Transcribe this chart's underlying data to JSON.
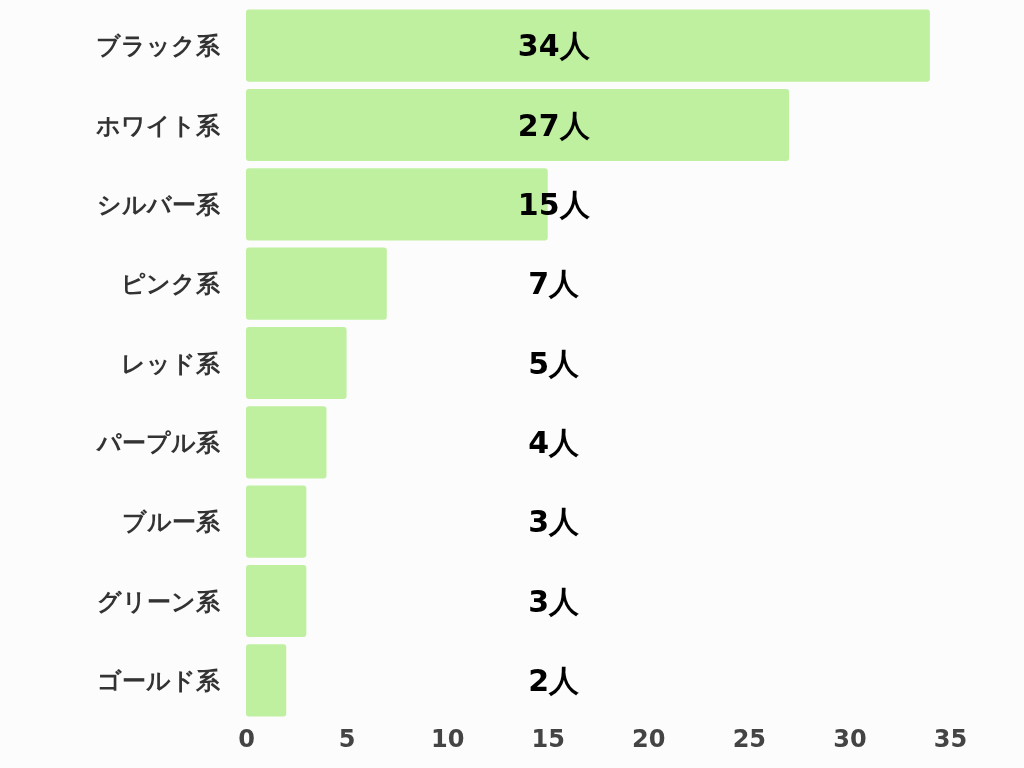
{
  "chart_data": {
    "type": "bar",
    "orientation": "horizontal",
    "categories": [
      "ブラック系",
      "ホワイト系",
      "シルバー系",
      "ピンク系",
      "レッド系",
      "パープル系",
      "ブルー系",
      "グリーン系",
      "ゴールド系"
    ],
    "values": [
      34,
      27,
      15,
      7,
      5,
      4,
      3,
      3,
      2
    ],
    "value_labels": [
      "34人",
      "27人",
      "15人",
      "7人",
      "5人",
      "4人",
      "3人",
      "3人",
      "2人"
    ],
    "color": "#bff0a0",
    "xlim": [
      0,
      35
    ],
    "xticks": [
      0,
      5,
      10,
      15,
      20,
      25,
      30,
      35
    ],
    "grid": false
  }
}
